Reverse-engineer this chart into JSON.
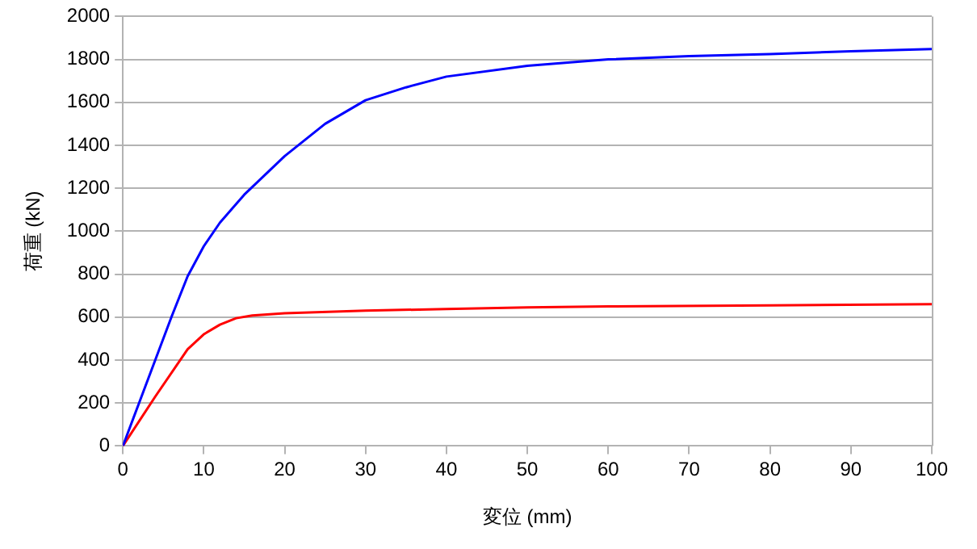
{
  "chart_data": {
    "type": "line",
    "xlabel": "変位 (mm)",
    "ylabel": "荷重 (kN)",
    "xlim": [
      0,
      100
    ],
    "xticks": [
      0,
      10,
      20,
      30,
      40,
      50,
      60,
      70,
      80,
      90,
      100
    ],
    "ylim": [
      0,
      2000
    ],
    "yticks": [
      0,
      200,
      400,
      600,
      800,
      1000,
      1200,
      1400,
      1600,
      1800,
      2000
    ],
    "grid": "y",
    "legend": false,
    "marker": "none",
    "line_style": "solid",
    "series": [
      {
        "color": "#0000ff",
        "x": [
          0,
          2,
          4,
          6,
          8,
          10,
          12,
          15,
          20,
          25,
          30,
          35,
          40,
          50,
          60,
          70,
          80,
          90,
          100
        ],
        "values": [
          0,
          200,
          400,
          600,
          790,
          930,
          1040,
          1170,
          1350,
          1500,
          1610,
          1670,
          1720,
          1770,
          1800,
          1815,
          1825,
          1838,
          1848
        ]
      },
      {
        "color": "#ff0000",
        "x": [
          0,
          4,
          8,
          10,
          12,
          14,
          16,
          20,
          30,
          40,
          50,
          60,
          80,
          100
        ],
        "values": [
          0,
          230,
          450,
          520,
          565,
          595,
          608,
          618,
          630,
          638,
          645,
          650,
          655,
          660
        ]
      }
    ]
  }
}
